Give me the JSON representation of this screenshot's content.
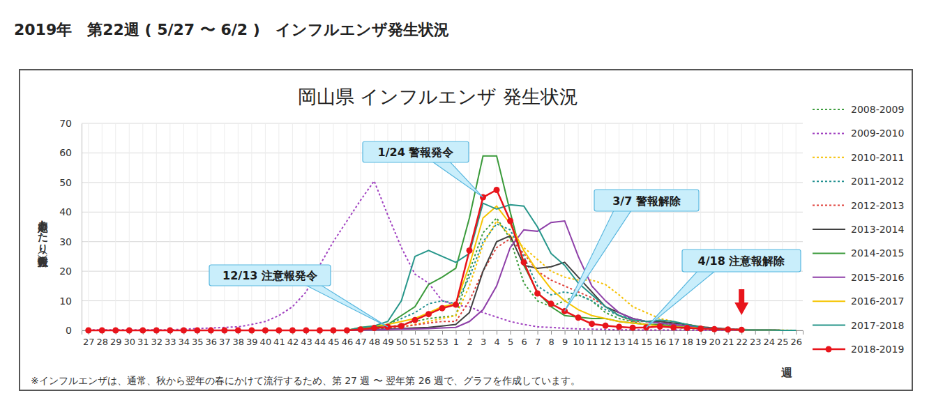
{
  "header": {
    "title": "2019年　第22週 ( 5/27 〜 6/2 )　インフルエンザ発生状況"
  },
  "chart_data": {
    "type": "line",
    "title": "岡山県 インフルエンザ 発生状況",
    "y_label": "定点あたり報告数（人）",
    "x_label": "週",
    "note": "※インフルエンザは、通常、秋から翌年の春にかけて流行するため、第 27 週 〜 翌年第 26 週で、グラフを作成しています。",
    "annotations": [
      {
        "text": "1/24 警報発令"
      },
      {
        "text": "3/7 警報解除"
      },
      {
        "text": "12/13 注意報発令"
      },
      {
        "text": "4/18 注意報解除"
      }
    ],
    "categories": [
      "27",
      "28",
      "29",
      "30",
      "31",
      "32",
      "33",
      "34",
      "35",
      "36",
      "37",
      "38",
      "39",
      "40",
      "41",
      "42",
      "43",
      "44",
      "45",
      "46",
      "47",
      "48",
      "49",
      "50",
      "51",
      "52",
      "53",
      "1",
      "2",
      "3",
      "4",
      "5",
      "6",
      "7",
      "8",
      "9",
      "10",
      "11",
      "12",
      "13",
      "14",
      "15",
      "16",
      "17",
      "18",
      "19",
      "20",
      "21",
      "22",
      "23",
      "24",
      "25",
      "26"
    ],
    "ylim": [
      0,
      70
    ],
    "yticks": [
      0,
      10,
      20,
      30,
      40,
      50,
      60,
      70
    ],
    "grid": true,
    "legend": "right",
    "series": [
      {
        "name": "2008-2009",
        "color": "#3f9e3f",
        "line_style": "dotted",
        "values": [
          0,
          0,
          0,
          0,
          0,
          0,
          0,
          0,
          0,
          0,
          0,
          0,
          0,
          0,
          0,
          0,
          0,
          0,
          0,
          0,
          0.3,
          0.6,
          1,
          2,
          3,
          4,
          4.5,
          5,
          20,
          33,
          38,
          31,
          16,
          10,
          8,
          10,
          12,
          10,
          6,
          4,
          3,
          2,
          1.5,
          1,
          0.7,
          0.5,
          0.3,
          0.2,
          0.1,
          0.1,
          0.1,
          0,
          0
        ]
      },
      {
        "name": "2009-2010",
        "color": "#a040c0",
        "line_style": "dotted",
        "values": [
          0.2,
          0.2,
          0.2,
          0.2,
          0.2,
          0.2,
          0.2,
          0.4,
          0.6,
          0.8,
          1,
          1.2,
          2,
          3,
          5,
          8,
          13,
          22,
          30,
          37,
          44,
          50.5,
          39,
          28,
          19,
          16,
          10,
          8.5,
          8,
          6,
          4.5,
          3,
          2,
          1.2,
          1,
          0.7,
          0.5,
          0.4,
          0.3,
          0.2,
          0.2,
          0.1,
          0.1,
          0.1,
          0.1,
          0,
          0,
          0,
          0,
          0,
          0,
          0,
          0
        ]
      },
      {
        "name": "2010-2011",
        "color": "#f5c000",
        "line_style": "dotted",
        "values": [
          0,
          0,
          0,
          0,
          0,
          0,
          0,
          0,
          0,
          0,
          0,
          0,
          0,
          0,
          0,
          0,
          0,
          0,
          0,
          0,
          0.3,
          0.5,
          0.8,
          1.2,
          2,
          3,
          4,
          5,
          15,
          29,
          37,
          32,
          28,
          24,
          20,
          18,
          17,
          17,
          15.5,
          12,
          8,
          6,
          4,
          3,
          2,
          1.2,
          0.8,
          0.5,
          0.3,
          0.2,
          0.1,
          0.1,
          0
        ]
      },
      {
        "name": "2011-2012",
        "color": "#1f8f8f",
        "line_style": "dotted",
        "values": [
          0,
          0,
          0,
          0,
          0,
          0,
          0,
          0,
          0,
          0,
          0,
          0,
          0,
          0,
          0,
          0,
          0,
          0,
          0,
          0,
          0.5,
          1,
          2,
          4,
          6,
          9,
          10,
          9,
          18,
          30,
          36,
          34,
          25,
          15,
          12,
          13,
          12,
          10,
          7,
          5,
          4,
          3,
          2.5,
          2,
          1.5,
          1,
          0.6,
          0.4,
          0.2,
          0.1,
          0.1,
          0,
          0
        ]
      },
      {
        "name": "2012-2013",
        "color": "#e0403a",
        "line_style": "dotted",
        "values": [
          0,
          0,
          0,
          0,
          0,
          0,
          0,
          0,
          0,
          0,
          0,
          0,
          0,
          0,
          0,
          0,
          0,
          0,
          0,
          0,
          0.3,
          0.5,
          0.8,
          1.2,
          1.8,
          2.5,
          3,
          3,
          10,
          20,
          28,
          31,
          26,
          20,
          17,
          15,
          13,
          11,
          8,
          5,
          3,
          3,
          2.5,
          2,
          1.5,
          1,
          0.6,
          0.4,
          0.2,
          0.1,
          0.1,
          0,
          0
        ]
      },
      {
        "name": "2013-2014",
        "color": "#404040",
        "line_style": "solid",
        "values": [
          0,
          0,
          0,
          0,
          0,
          0,
          0,
          0,
          0,
          0,
          0,
          0,
          0,
          0,
          0,
          0,
          0,
          0,
          0,
          0,
          0.2,
          0.3,
          0.4,
          0.6,
          0.8,
          1,
          1.5,
          2,
          6,
          20,
          30,
          32,
          22,
          21,
          21.5,
          23,
          18,
          13,
          8,
          6,
          4,
          3,
          3,
          2.5,
          2,
          1.2,
          0.8,
          0.5,
          0.3,
          0.2,
          0.1,
          0,
          0
        ]
      },
      {
        "name": "2014-2015",
        "color": "#3a9a3a",
        "line_style": "solid",
        "values": [
          0,
          0,
          0,
          0,
          0,
          0,
          0,
          0,
          0,
          0,
          0,
          0,
          0,
          0,
          0,
          0,
          0,
          0,
          0,
          0,
          0.8,
          1,
          2,
          5,
          8,
          15.5,
          18,
          21,
          38,
          59,
          59,
          40,
          22,
          13,
          8,
          5,
          4.5,
          4,
          4,
          3,
          2.5,
          2,
          2,
          1.5,
          1,
          0.8,
          0.5,
          0.3,
          0.2,
          0.1,
          0.1,
          0,
          0
        ]
      },
      {
        "name": "2015-2016",
        "color": "#8e3fa8",
        "line_style": "solid",
        "values": [
          0,
          0,
          0,
          0,
          0,
          0,
          0,
          0,
          0,
          0,
          0,
          0,
          0,
          0,
          0,
          0,
          0,
          0,
          0,
          0,
          0.1,
          0.2,
          0.3,
          0.4,
          0.5,
          0.6,
          0.8,
          1,
          3,
          7,
          15,
          28,
          34,
          33.5,
          36.5,
          37,
          25,
          15,
          10,
          6,
          4,
          3,
          2.5,
          2,
          1.5,
          1,
          0.6,
          0.4,
          0.2,
          0.1,
          0.1,
          0,
          0
        ]
      },
      {
        "name": "2016-2017",
        "color": "#f5c400",
        "line_style": "solid",
        "values": [
          0,
          0,
          0,
          0,
          0,
          0,
          0,
          0,
          0,
          0,
          0,
          0,
          0,
          0,
          0,
          0,
          0,
          0,
          0,
          0,
          1,
          1.5,
          2,
          3,
          4,
          6,
          8,
          9,
          22,
          38,
          42,
          36,
          27,
          20,
          14,
          10,
          7,
          5,
          4,
          3,
          2.5,
          2,
          1.5,
          1.2,
          1,
          0.8,
          0.5,
          0.3,
          0.2,
          0.1,
          0.1,
          0,
          0
        ]
      },
      {
        "name": "2017-2018",
        "color": "#26968a",
        "line_style": "solid",
        "values": [
          0,
          0,
          0,
          0,
          0,
          0,
          0,
          0,
          0,
          0,
          0,
          0,
          0,
          0,
          0,
          0,
          0,
          0,
          0,
          0,
          1,
          1.5,
          3,
          10,
          25,
          27,
          25,
          23,
          26,
          43,
          41,
          42.5,
          42,
          35,
          26,
          22,
          16,
          12,
          8,
          5,
          3.5,
          3,
          3.5,
          3,
          2,
          1,
          0.5,
          0.3,
          0.2,
          0.1,
          0.1,
          0,
          0
        ]
      },
      {
        "name": "2018-2019",
        "color": "#e8141b",
        "line_style": "solid",
        "marker": "circle",
        "values": [
          0,
          0,
          0,
          0,
          0,
          0,
          0,
          0,
          0,
          0,
          0,
          0,
          0,
          0,
          0,
          0,
          0,
          0,
          0,
          0,
          0.3,
          0.8,
          1.2,
          1.5,
          3.5,
          5.5,
          7.5,
          8.7,
          27,
          45,
          47.5,
          37,
          23,
          12.5,
          9,
          6.5,
          4.3,
          2.2,
          1.6,
          1.2,
          0.9,
          1,
          1.3,
          1,
          0.8,
          0.6,
          0.4,
          0.3,
          0.2,
          null,
          null,
          null,
          null
        ]
      }
    ]
  }
}
